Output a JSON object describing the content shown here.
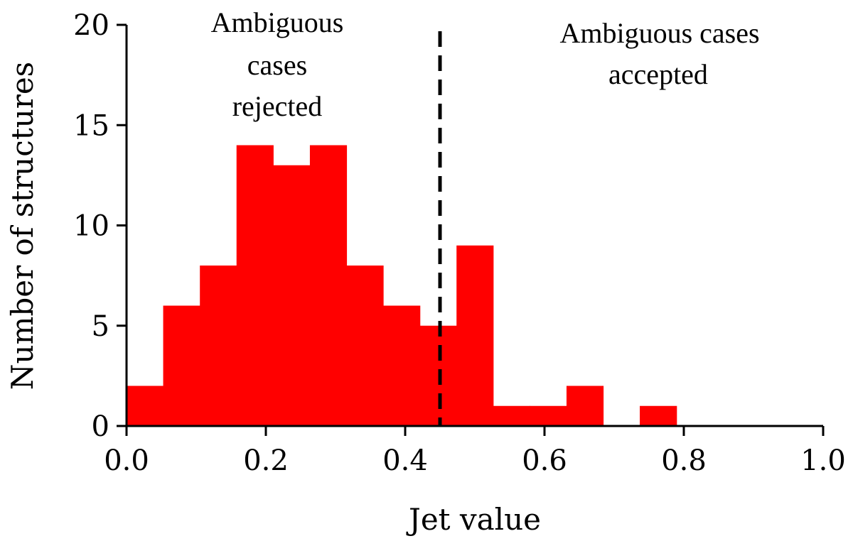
{
  "chart_data": {
    "type": "bar",
    "bin_edges": [
      0.0,
      0.0526,
      0.1053,
      0.1579,
      0.2105,
      0.2632,
      0.3158,
      0.3684,
      0.4211,
      0.4737,
      0.5263,
      0.5789,
      0.6316,
      0.6842,
      0.7368,
      0.7895,
      0.8421,
      0.8947,
      0.9474,
      1.0
    ],
    "values": [
      2,
      6,
      8,
      14,
      13,
      14,
      8,
      6,
      5,
      9,
      1,
      1,
      2,
      0,
      1,
      0,
      0,
      0,
      0
    ],
    "bar_color": "#ff0000",
    "xlabel": "Jet value",
    "ylabel": "Number of structures",
    "xlim": [
      0.0,
      1.0
    ],
    "ylim": [
      0,
      20
    ],
    "x_ticks": [
      "0.0",
      "0.2",
      "0.4",
      "0.6",
      "0.8",
      "1.0"
    ],
    "y_ticks": [
      "0",
      "5",
      "10",
      "15",
      "20"
    ],
    "threshold": {
      "x": 0.45,
      "style": "dashed",
      "color": "#000000"
    },
    "annotations": {
      "left_lines": [
        "Ambiguous",
        "cases",
        "rejected"
      ],
      "right_lines": [
        "Ambiguous cases",
        "accepted"
      ]
    },
    "grid": false
  }
}
